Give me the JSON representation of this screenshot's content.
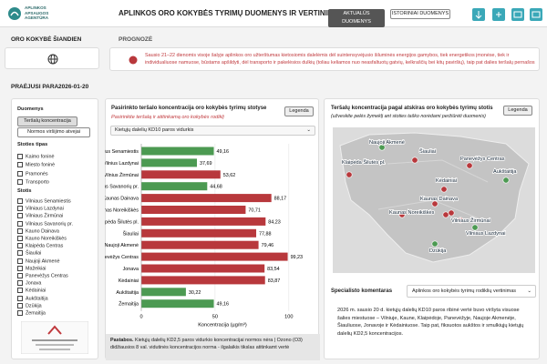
{
  "header": {
    "org": [
      "APLINKOS",
      "APSAUGOS",
      "AGENTŪRA"
    ],
    "title": "APLINKOS ORO KOKYBĖS TYRIMŲ DUOMENYS IR VERTINIMAS",
    "buttons": [
      "AKTUALŪS DUOMENYS",
      "ISTORINIAI DUOMENYS"
    ]
  },
  "today": {
    "label": "ORO KOKYBĖ ŠIANDIEN"
  },
  "forecast": {
    "label": "PROGNOZĖ",
    "text": "Sausio 21–22 dienomis visoje šalyje aplinkos oro užterštumas kietosiomis dalelėmis dėl suintensyvėjusio šiluminės energijos gamybos, tiek energetikos įmonėse, tiek ir individualiuose namuose, būstams apšildyti, dėl transporto ir pakelėsios dulkių (toliau keliamos nuo neasfaltuotų gatvių, kelkraščių bei kitų paviršių), taip pat dalies teršalų pernašos"
  },
  "period": {
    "label": "PRAĖJUSI PARA",
    "date": "2026-01-20"
  },
  "sidebar": {
    "data_label": "Duomenys",
    "buttons": [
      "Teršalų koncentracija",
      "Normos viršijimo atvejai"
    ],
    "type_label": "Stoties tipas",
    "types": [
      "Kaimo foninė",
      "Miesto foninė",
      "Pramonės",
      "Transporto"
    ],
    "station_label": "Stotis",
    "stations": [
      "Vilniaus Senamiestis",
      "Vilniaus Lazdynai",
      "Vilniaus Žirmūnai",
      "Vilniaus Savanorių pr.",
      "Kauno Dainava",
      "Kauno Noreikiškės",
      "Klaipėda Centras",
      "Šiauliai",
      "Naujoji Akmenė",
      "Mažeikiai",
      "Panevėžys Centras",
      "Jonava",
      "Kėdainiai",
      "Aukštaitija",
      "Dzūkija",
      "Žemaitija"
    ]
  },
  "chart_data": {
    "type": "bar",
    "orientation": "horizontal",
    "title": "Pasirinkto teršalo koncentracija oro kokybės tyrimų stotyse",
    "subtitle": "Pasirinkite teršalą ir atitinkamą oro kokybės rodiklį",
    "legend_button": "Legenda",
    "selector": "Kietųjų dalelių KD10 paros vidurkis",
    "categories": [
      "Vilnius Senamiestis",
      "Vilnius Lazdynai",
      "Vilnius Žirmūnai",
      "Vilnius Savanorių pr.",
      "Kaunas Dainava",
      "Kaunas Noreikiškės",
      "Klaipėda Šilutės pl.",
      "Šiauliai",
      "Naujoji Akmenė",
      "Panevėžys Centras",
      "Jonava",
      "Kėdainiai",
      "Aukštaitija",
      "Žemaitija"
    ],
    "values": [
      49.16,
      37.69,
      53.62,
      44.68,
      88.17,
      70.71,
      84.23,
      77.88,
      79.46,
      99.23,
      83.54,
      83.87,
      30.22,
      49.16
    ],
    "value_labels": [
      "49,16",
      "37,69",
      "53,62",
      "44,68",
      "88,17",
      "70,71",
      "84,23",
      "77,88",
      "79,46",
      "99,23",
      "83,54",
      "83,87",
      "30,22",
      "49,16"
    ],
    "colors": [
      "#4c9a52",
      "#4c9a52",
      "#b8383c",
      "#4c9a52",
      "#b8383c",
      "#b8383c",
      "#b8383c",
      "#b8383c",
      "#b8383c",
      "#b8383c",
      "#b8383c",
      "#b8383c",
      "#4c9a52",
      "#4c9a52"
    ],
    "xlim": [
      0,
      110
    ],
    "xticks": [
      0,
      50,
      100
    ],
    "grid": true,
    "xlabel": "Koncentracija (µg/m³)",
    "note_label": "Pastabos.",
    "note": "Kietųjų dalelių KD2,5 paros vidurkio koncentracijai normos nėra | Ozono (O3) didžiausios 8 val. vidutinės koncentracijos norma - ilgalaikis tikslas atitinkamt vertė"
  },
  "map": {
    "title": "Teršalų koncentracija pagal atskiras oro kokybės tyrimų stotis",
    "hint": "(užveskite pelės žymeklį ant stoties taško norėdami peržiūrėti duomenis)",
    "legend_button": "Legenda",
    "labels": [
      "Naujoji Akmenė",
      "Šiauliai",
      "Panevėžys Centras",
      "Klaipėda Šilutės pl.",
      "Aukštaitija",
      "Kėdainiai",
      "Kaunas Dainava",
      "Kaunas Noreikiškės",
      "Vilniaus Žirmūnai",
      "Vilniaus Lazdynai",
      "Dzūkija"
    ]
  },
  "comment": {
    "label": "Specialisto komentaras",
    "selector": "Aplinkos oro kokybės tyrimų rodiklių vertinimas",
    "text": "2026 m. sausio 20 d. kietųjų dalelių KD10 paros ribinė vertė buvo viršyta visuose šalies miestuose – Vilniuje, Kaune, Klaipėdoje, Panevėžyje, Naujoje Akmenėje, Šiauliuose, Jonavoje ir Kėdainiuose. Taip pat, fiksuotos aukštos ir smulkiųjų kietųjų dalelių KD2,5 koncentracijos."
  }
}
